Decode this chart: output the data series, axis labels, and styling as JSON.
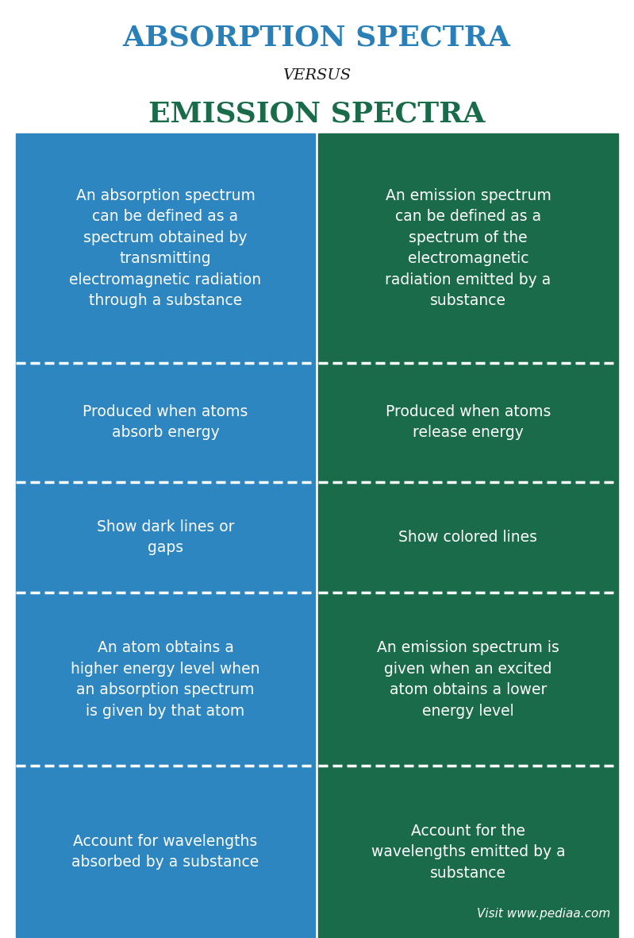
{
  "title1": "ABSORPTION SPECTRA",
  "versus": "VERSUS",
  "title2": "EMISSION SPECTRA",
  "title1_color": "#2980b9",
  "title2_color": "#1a6b4a",
  "versus_color": "#1a1a1a",
  "blue_color": "#2e86c1",
  "green_color": "#1a6b4a",
  "white_color": "#ffffff",
  "bg_color": "#ffffff",
  "left_cells": [
    "An absorption spectrum\ncan be defined as a\nspectrum obtained by\ntransmitting\nelectromagnetic radiation\nthrough a substance",
    "Produced when atoms\nabsorb energy",
    "Show dark lines or\ngaps",
    "An atom obtains a\nhigher energy level when\nan absorption spectrum\nis given by that atom",
    "Account for wavelengths\nabsorbed by a substance"
  ],
  "right_cells": [
    "An emission spectrum\ncan be defined as a\nspectrum of the\nelectromagnetic\nradiation emitted by a\nsubstance",
    "Produced when atoms\nrelease energy",
    "Show colored lines",
    "An emission spectrum is\ngiven when an excited\natom obtains a lower\nenergy level",
    "Account for the\nwavelengths emitted by a\nsubstance"
  ],
  "watermark": "Visit www.pediaa.com"
}
